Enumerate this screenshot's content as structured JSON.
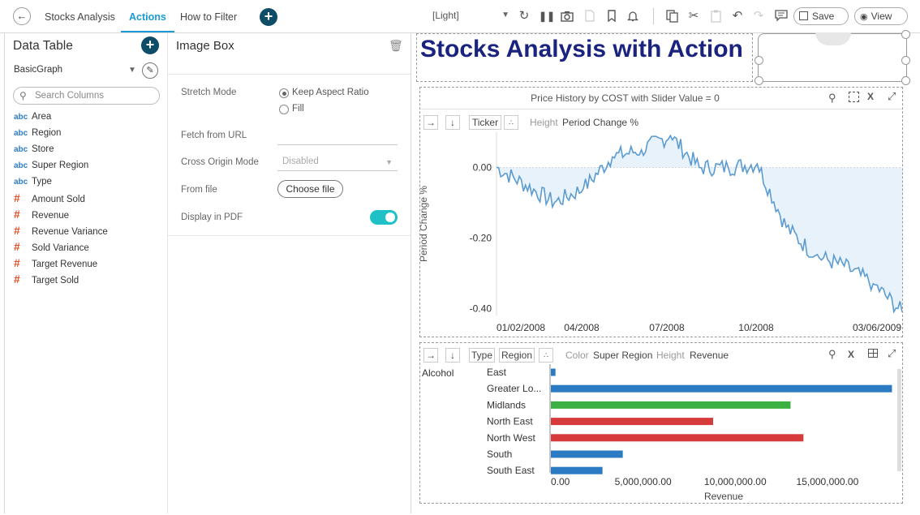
{
  "topbar": {
    "tabs": [
      "Stocks Analysis",
      "Actions",
      "How to Filter"
    ],
    "active_tab": 1,
    "theme": "[Light]",
    "save_label": "Save",
    "view_label": "View"
  },
  "left_panel": {
    "title": "Data Table",
    "table_name": "BasicGraph",
    "search_placeholder": "Search Columns",
    "columns": [
      {
        "type": "abc",
        "name": "Area"
      },
      {
        "type": "abc",
        "name": "Region"
      },
      {
        "type": "abc",
        "name": "Store"
      },
      {
        "type": "abc",
        "name": "Super Region"
      },
      {
        "type": "abc",
        "name": "Type"
      },
      {
        "type": "#",
        "name": "Amount Sold"
      },
      {
        "type": "#",
        "name": "Revenue"
      },
      {
        "type": "#",
        "name": "Revenue Variance"
      },
      {
        "type": "#",
        "name": "Sold Variance"
      },
      {
        "type": "#",
        "name": "Target Revenue"
      },
      {
        "type": "#",
        "name": "Target Sold"
      }
    ]
  },
  "mid_panel": {
    "title": "Image Box",
    "stretch_mode_label": "Stretch Mode",
    "stretch_options": [
      "Keep Aspect Ratio",
      "Fill"
    ],
    "fetch_url_label": "Fetch from URL",
    "cross_origin_label": "Cross Origin Mode",
    "cross_origin_value": "Disabled",
    "from_file_label": "From file",
    "choose_file_label": "Choose file",
    "pdf_label": "Display in PDF",
    "pdf_on": true
  },
  "dashboard": {
    "title": "Stocks Analysis with Action",
    "line_viz": {
      "title": "Price History by COST with Slider Value = 0",
      "ticker_btn": "Ticker",
      "height_label": "Height",
      "height_value": "Period Change %"
    },
    "bar_viz": {
      "type_btn": "Type",
      "region_btn": "Region",
      "color_label": "Color",
      "color_value": "Super Region",
      "height_label": "Height",
      "height_value": "Revenue",
      "group_label": "Alcohol"
    }
  },
  "chart_data": [
    {
      "type": "line",
      "title": "",
      "ylabel": "Period Change %",
      "xlabel": "",
      "x_tick_labels": [
        "01/02/2008",
        "04/2008",
        "07/2008",
        "10/2008",
        "03/06/2009"
      ],
      "y_tick_labels": [
        "0.00",
        "-0.20",
        "-0.40"
      ],
      "ylim": [
        -0.42,
        0.1
      ],
      "area_fill": true,
      "series": [
        {
          "x": [
            "01/2008",
            "02/2008",
            "03/2008",
            "04/2008",
            "05/2008",
            "06/2008",
            "07/2008",
            "08/2008",
            "09/2008",
            "10/2008",
            "11/2008",
            "12/2008",
            "01/2009",
            "02/2009",
            "03/2009"
          ],
          "values": [
            0.0,
            -0.05,
            -0.1,
            -0.06,
            0.03,
            0.05,
            0.09,
            0.0,
            -0.0,
            0.01,
            -0.17,
            -0.25,
            -0.28,
            -0.33,
            -0.41
          ]
        }
      ],
      "color": "#5b9bd0"
    },
    {
      "type": "bar",
      "orientation": "horizontal",
      "categories": [
        "East",
        "Greater Lo...",
        "Midlands",
        "North East",
        "North West",
        "South",
        "South East"
      ],
      "values": [
        250000,
        18500000,
        13000000,
        8800000,
        13700000,
        3900000,
        2800000
      ],
      "colors": [
        "#2a7bc1",
        "#2a7bc1",
        "#3cb043",
        "#d63a3a",
        "#d63a3a",
        "#2a7bc1",
        "#2a7bc1"
      ],
      "xlabel": "Revenue",
      "x_tick_labels": [
        "0.00",
        "5,000,000.00",
        "10,000,000.00",
        "15,000,000.00"
      ],
      "xlim": [
        0,
        18700000
      ]
    }
  ]
}
